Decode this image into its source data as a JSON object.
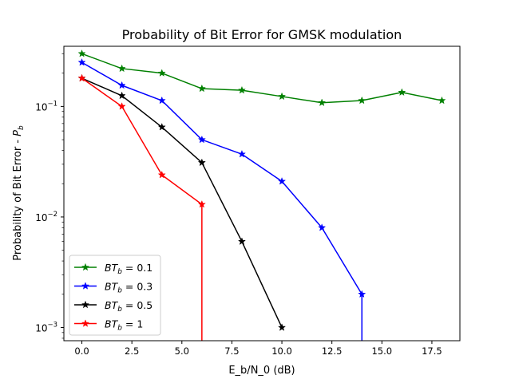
{
  "chart_data": {
    "type": "line",
    "title": "Probability of Bit Error for GMSK modulation",
    "xlabel": "E_b/N_0 (dB)",
    "ylabel": "Probability of Bit Error - ",
    "ylabel_symbol": "P",
    "ylabel_sub": "b",
    "xlim": [
      -0.9,
      18.9
    ],
    "ylim": [
      0.00076,
      0.35
    ],
    "yscale": "log",
    "grid": false,
    "legend_position": "lower-left",
    "xticks": [
      {
        "value": 0,
        "label": "0.0"
      },
      {
        "value": 2.5,
        "label": "2.5"
      },
      {
        "value": 5,
        "label": "5.0"
      },
      {
        "value": 7.5,
        "label": "7.5"
      },
      {
        "value": 10,
        "label": "10.0"
      },
      {
        "value": 12.5,
        "label": "12.5"
      },
      {
        "value": 15,
        "label": "15.0"
      },
      {
        "value": 17.5,
        "label": "17.5"
      }
    ],
    "yticks": [
      {
        "value": 0.1,
        "mantissa": "10",
        "exponent": "−1"
      },
      {
        "value": 0.01,
        "mantissa": "10",
        "exponent": "−2"
      },
      {
        "value": 0.001,
        "mantissa": "10",
        "exponent": "−3"
      }
    ],
    "series": [
      {
        "name": "BT_b = 0.1",
        "label_base": "BT",
        "label_sub": "b",
        "label_value": " = 0.1",
        "color": "#008000",
        "marker": "star",
        "points": [
          {
            "x": 0,
            "y": 0.3
          },
          {
            "x": 2,
            "y": 0.22
          },
          {
            "x": 4,
            "y": 0.2
          },
          {
            "x": 6,
            "y": 0.145
          },
          {
            "x": 8,
            "y": 0.14
          },
          {
            "x": 10,
            "y": 0.123
          },
          {
            "x": 12,
            "y": 0.108
          },
          {
            "x": 14,
            "y": 0.113
          },
          {
            "x": 16,
            "y": 0.134
          },
          {
            "x": 18,
            "y": 0.113
          }
        ]
      },
      {
        "name": "BT_b = 0.3",
        "label_base": "BT",
        "label_sub": "b",
        "label_value": " = 0.3",
        "color": "#0000ff",
        "marker": "star",
        "drop_after_x": 14,
        "points": [
          {
            "x": 0,
            "y": 0.25
          },
          {
            "x": 2,
            "y": 0.155
          },
          {
            "x": 4,
            "y": 0.113
          },
          {
            "x": 6,
            "y": 0.05
          },
          {
            "x": 8,
            "y": 0.037
          },
          {
            "x": 10,
            "y": 0.021
          },
          {
            "x": 12,
            "y": 0.008
          },
          {
            "x": 14,
            "y": 0.002
          }
        ]
      },
      {
        "name": "BT_b = 0.5",
        "label_base": "BT",
        "label_sub": "b",
        "label_value": " = 0.5",
        "color": "#000000",
        "marker": "star",
        "points": [
          {
            "x": 0,
            "y": 0.18
          },
          {
            "x": 2,
            "y": 0.125
          },
          {
            "x": 4,
            "y": 0.065
          },
          {
            "x": 6,
            "y": 0.031
          },
          {
            "x": 8,
            "y": 0.006
          },
          {
            "x": 10,
            "y": 0.001
          }
        ]
      },
      {
        "name": "BT_b = 1",
        "label_base": "BT",
        "label_sub": "b",
        "label_value": " = 1",
        "color": "#ff0000",
        "marker": "star",
        "drop_after_x": 6,
        "points": [
          {
            "x": 0,
            "y": 0.18
          },
          {
            "x": 2,
            "y": 0.1
          },
          {
            "x": 4,
            "y": 0.024
          },
          {
            "x": 6,
            "y": 0.013
          }
        ]
      }
    ]
  }
}
